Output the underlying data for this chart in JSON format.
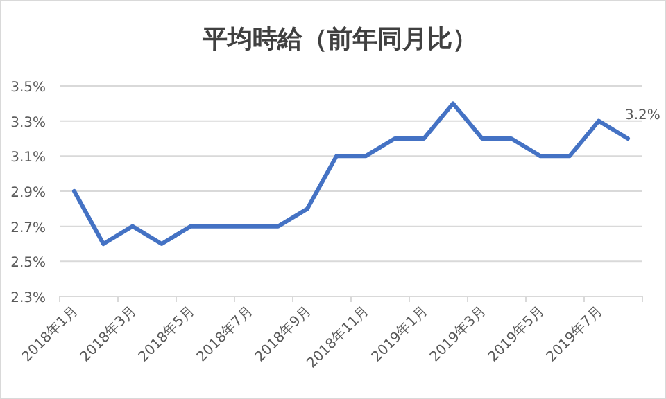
{
  "chart_data": {
    "type": "line",
    "title": "平均時給（前年同月比）",
    "categories": [
      "2018年1月",
      null,
      "2018年3月",
      null,
      "2018年5月",
      null,
      "2018年7月",
      null,
      "2018年9月",
      null,
      "2018年11月",
      null,
      "2019年1月",
      null,
      "2019年3月",
      null,
      "2019年5月",
      null,
      "2019年7月",
      null
    ],
    "values": [
      2.9,
      2.6,
      2.7,
      2.6,
      2.7,
      2.7,
      2.7,
      2.7,
      2.8,
      3.1,
      3.1,
      3.2,
      3.2,
      3.4,
      3.2,
      3.2,
      3.1,
      3.1,
      3.3,
      3.2
    ],
    "value_labels": [
      null,
      null,
      null,
      null,
      null,
      null,
      null,
      null,
      null,
      null,
      null,
      null,
      null,
      null,
      null,
      null,
      null,
      null,
      null,
      "3.2%"
    ],
    "color": "#4472c4",
    "ylim": [
      2.3,
      3.5
    ],
    "yticks": [
      {
        "value": 2.3,
        "label": "2.3%"
      },
      {
        "value": 2.5,
        "label": "2.5%"
      },
      {
        "value": 2.7,
        "label": "2.7%"
      },
      {
        "value": 2.9,
        "label": "2.9%"
      },
      {
        "value": 3.1,
        "label": "3.1%"
      },
      {
        "value": 3.3,
        "label": "3.3%"
      },
      {
        "value": 3.5,
        "label": "3.5%"
      }
    ],
    "grid": "y"
  }
}
